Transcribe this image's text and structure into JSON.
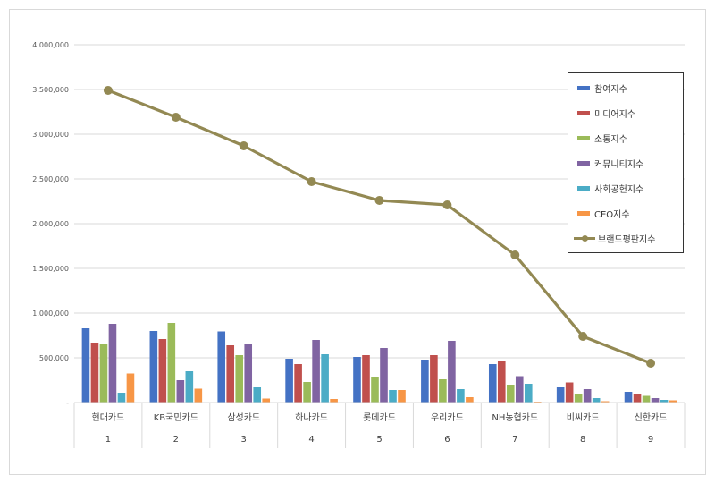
{
  "chart_data": {
    "type": "bar",
    "categories": [
      "현대카드",
      "KB국민카드",
      "삼성카드",
      "하나카드",
      "롯데카드",
      "우리카드",
      "NH농협카드",
      "비씨카드",
      "신한카드"
    ],
    "category_index": [
      "1",
      "2",
      "3",
      "4",
      "5",
      "6",
      "7",
      "8",
      "9"
    ],
    "y_tick_labels": [
      "-",
      "500,000",
      "1,000,000",
      "1,500,000",
      "2,000,000",
      "2,500,000",
      "3,000,000",
      "3,500,000",
      "4,000,000"
    ],
    "ylim": [
      0,
      4000000
    ],
    "grid": true,
    "legend_position": "top-right",
    "series": [
      {
        "name": "참여지수",
        "kind": "bar",
        "color": "#4472C4",
        "values": [
          830000,
          800000,
          795000,
          490000,
          510000,
          480000,
          430000,
          170000,
          120000
        ]
      },
      {
        "name": "미디어지수",
        "kind": "bar",
        "color": "#C0504D",
        "values": [
          670000,
          710000,
          640000,
          430000,
          530000,
          530000,
          460000,
          225000,
          100000
        ]
      },
      {
        "name": "소통지수",
        "kind": "bar",
        "color": "#9BBB59",
        "values": [
          650000,
          890000,
          530000,
          230000,
          290000,
          260000,
          200000,
          100000,
          75000
        ]
      },
      {
        "name": "커뮤니티지수",
        "kind": "bar",
        "color": "#8064A2",
        "values": [
          880000,
          250000,
          650000,
          700000,
          610000,
          690000,
          295000,
          150000,
          50000
        ]
      },
      {
        "name": "사회공헌지수",
        "kind": "bar",
        "color": "#4BACC6",
        "values": [
          110000,
          350000,
          170000,
          540000,
          140000,
          150000,
          210000,
          50000,
          30000
        ]
      },
      {
        "name": "CEO지수",
        "kind": "bar",
        "color": "#F79646",
        "values": [
          325000,
          155000,
          45000,
          40000,
          140000,
          60000,
          10000,
          15000,
          25000
        ]
      },
      {
        "name": "브랜드평판지수",
        "kind": "line",
        "color": "#938953",
        "values": [
          3490000,
          3190000,
          2870000,
          2470000,
          2260000,
          2210000,
          1650000,
          740000,
          440000
        ]
      }
    ]
  }
}
